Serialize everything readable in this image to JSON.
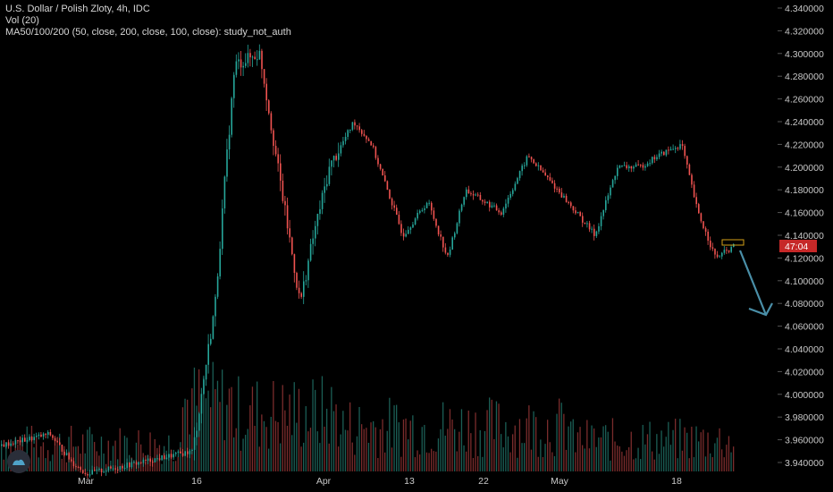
{
  "legend": {
    "title": "U.S. Dollar / Polish Zloty, 4h, IDC",
    "volume": "Vol (20)",
    "ma": "MA50/100/200 (50, close, 200, close, 100, close): study_not_auth"
  },
  "price_label": "47:04",
  "colors": {
    "up": "#26a69a",
    "down": "#ef5350",
    "arrow": "#4a8fa8",
    "label_bg": "#c62828"
  },
  "icons": {
    "logo": "tradingview-logo-icon"
  },
  "chart_data": {
    "type": "candlestick",
    "title": "U.S. Dollar / Polish Zloty, 4h, IDC",
    "ylim": [
      3.93,
      4.345
    ],
    "y_ticks": [
      "4.340000",
      "4.320000",
      "4.300000",
      "4.280000",
      "4.260000",
      "4.240000",
      "4.220000",
      "4.200000",
      "4.180000",
      "4.160000",
      "4.140000",
      "4.120000",
      "4.100000",
      "4.080000",
      "4.060000",
      "4.040000",
      "4.020000",
      "4.000000",
      "3.980000",
      "3.960000",
      "3.940000"
    ],
    "x_ticks": [
      "Mar",
      "16",
      "Apr",
      "13",
      "22",
      "May",
      "18"
    ],
    "approx_close_path": [
      {
        "x": "Feb 24",
        "y": 3.955
      },
      {
        "x": "Mar 2",
        "y": 3.965
      },
      {
        "x": "Mar 9",
        "y": 3.94
      },
      {
        "x": "Mar 13",
        "y": 3.93
      },
      {
        "x": "Mar 16",
        "y": 3.95
      },
      {
        "x": "Mar 18",
        "y": 4.08
      },
      {
        "x": "Mar 19",
        "y": 4.2
      },
      {
        "x": "Mar 20",
        "y": 4.29
      },
      {
        "x": "Mar 23",
        "y": 4.3
      },
      {
        "x": "Mar 25",
        "y": 4.2
      },
      {
        "x": "Mar 27",
        "y": 4.08
      },
      {
        "x": "Mar 30",
        "y": 4.14
      },
      {
        "x": "Apr 1",
        "y": 4.2
      },
      {
        "x": "Apr 2",
        "y": 4.24
      },
      {
        "x": "Apr 3",
        "y": 4.22
      },
      {
        "x": "Apr 6",
        "y": 4.14
      },
      {
        "x": "Apr 9",
        "y": 4.17
      },
      {
        "x": "Apr 13",
        "y": 4.12
      },
      {
        "x": "Apr 15",
        "y": 4.18
      },
      {
        "x": "Apr 20",
        "y": 4.16
      },
      {
        "x": "Apr 22",
        "y": 4.21
      },
      {
        "x": "Apr 27",
        "y": 4.18
      },
      {
        "x": "May 1",
        "y": 4.14
      },
      {
        "x": "May 5",
        "y": 4.2
      },
      {
        "x": "May 8",
        "y": 4.2
      },
      {
        "x": "May 12",
        "y": 4.21
      },
      {
        "x": "May 15",
        "y": 4.22
      },
      {
        "x": "May 18",
        "y": 4.16
      },
      {
        "x": "May 20",
        "y": 4.12
      },
      {
        "x": "May 22",
        "y": 4.13
      }
    ],
    "volume_series": "Vol (20)"
  }
}
